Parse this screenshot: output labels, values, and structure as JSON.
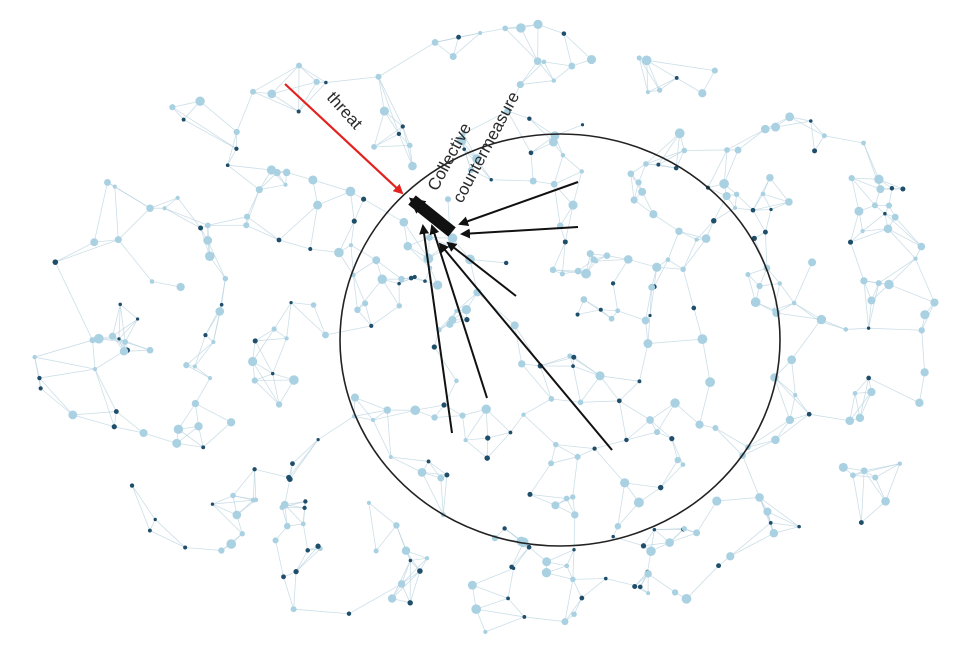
{
  "labels": {
    "threat": "threat",
    "countermeasure_line1": "Collective",
    "countermeasure_line2": "countermeasure"
  },
  "colors": {
    "threat": "#e3211f",
    "countermeasure": "#111111",
    "circle": "#222222",
    "node_light": "#a9d1e2",
    "node_dark": "#1f4e6b",
    "edge": "#b6d2de"
  }
}
